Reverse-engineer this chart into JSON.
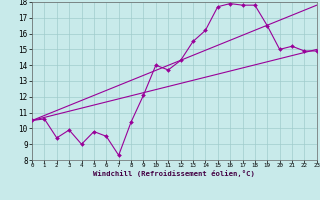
{
  "title": "",
  "xlabel": "Windchill (Refroidissement éolien,°C)",
  "ylabel": "",
  "xlim": [
    0,
    23
  ],
  "ylim": [
    8,
    18
  ],
  "xticks": [
    0,
    1,
    2,
    3,
    4,
    5,
    6,
    7,
    8,
    9,
    10,
    11,
    12,
    13,
    14,
    15,
    16,
    17,
    18,
    19,
    20,
    21,
    22,
    23
  ],
  "yticks": [
    8,
    9,
    10,
    11,
    12,
    13,
    14,
    15,
    16,
    17,
    18
  ],
  "color": "#990099",
  "bg_color": "#c8eaea",
  "grid_color": "#a0cccc",
  "line1_x": [
    0,
    1,
    2,
    3,
    4,
    5,
    6,
    7,
    8,
    9,
    10,
    11,
    12,
    13,
    14,
    15,
    16,
    17,
    18,
    19,
    20,
    21,
    22,
    23
  ],
  "line1_y": [
    10.5,
    10.6,
    9.4,
    9.9,
    9.0,
    9.8,
    9.5,
    8.3,
    10.4,
    12.1,
    14.0,
    13.7,
    14.3,
    15.5,
    16.2,
    17.7,
    17.9,
    17.8,
    17.8,
    16.5,
    15.0,
    15.2,
    14.9,
    14.9
  ],
  "line2_x": [
    0,
    23
  ],
  "line2_y": [
    10.5,
    17.8
  ],
  "line3_x": [
    0,
    23
  ],
  "line3_y": [
    10.5,
    15.0
  ]
}
